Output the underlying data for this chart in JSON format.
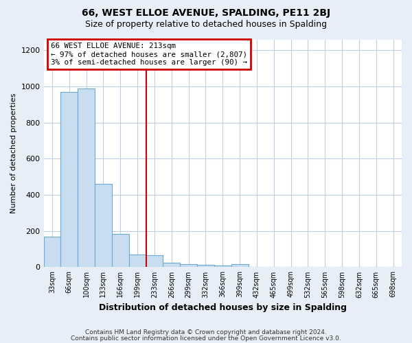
{
  "title1": "66, WEST ELLOE AVENUE, SPALDING, PE11 2BJ",
  "title2": "Size of property relative to detached houses in Spalding",
  "xlabel": "Distribution of detached houses by size in Spalding",
  "ylabel": "Number of detached properties",
  "bin_labels": [
    "33sqm",
    "66sqm",
    "100sqm",
    "133sqm",
    "166sqm",
    "199sqm",
    "233sqm",
    "266sqm",
    "299sqm",
    "332sqm",
    "366sqm",
    "399sqm",
    "432sqm",
    "465sqm",
    "499sqm",
    "532sqm",
    "565sqm",
    "598sqm",
    "632sqm",
    "665sqm",
    "698sqm"
  ],
  "bin_values": [
    170,
    970,
    990,
    460,
    185,
    70,
    68,
    25,
    18,
    12,
    10,
    18,
    0,
    0,
    0,
    0,
    0,
    0,
    0,
    0,
    0
  ],
  "bar_color": "#c8ddf0",
  "bar_edge_color": "#6aaad4",
  "annotation_line1": "66 WEST ELLOE AVENUE: 213sqm",
  "annotation_line2": "← 97% of detached houses are smaller (2,807)",
  "annotation_line3": "3% of semi-detached houses are larger (90) →",
  "annotation_box_color": "white",
  "annotation_border_color": "#cc0000",
  "vline_color": "#cc0000",
  "footer1": "Contains HM Land Registry data © Crown copyright and database right 2024.",
  "footer2": "Contains public sector information licensed under the Open Government Licence v3.0.",
  "bg_color": "#e8eef8",
  "plot_bg_color": "white",
  "grid_color": "#c0cce0",
  "ylim": [
    0,
    1260
  ],
  "yticks": [
    0,
    200,
    400,
    600,
    800,
    1000,
    1200
  ],
  "title1_fontsize": 10,
  "title2_fontsize": 9
}
